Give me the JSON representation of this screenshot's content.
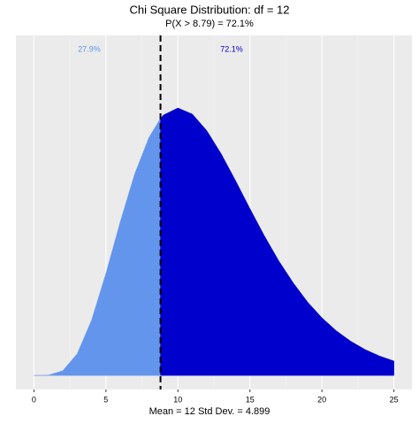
{
  "chart_data": {
    "type": "area",
    "title": "Chi Square Distribution: df = 12",
    "subtitle": "P(X > 8.79) = 72.1%",
    "xlabel": "Mean = 12  Std Dev. = 4.899",
    "cutoff": 8.79,
    "annotations": [
      "27.9%",
      "72.1%"
    ],
    "colors": [
      "#6495ed",
      "#0000cd"
    ],
    "x": [
      0,
      1,
      2,
      3,
      4,
      5,
      6,
      7,
      8,
      8.79,
      9,
      10,
      11,
      12,
      13,
      14,
      15,
      16,
      17,
      18,
      19,
      20,
      21,
      22,
      23,
      24,
      25
    ],
    "values": [
      0,
      7.9e-05,
      0.00153,
      0.00706,
      0.01804,
      0.0334,
      0.0504,
      0.0661,
      0.0781,
      0.0843,
      0.0854,
      0.0877,
      0.0857,
      0.0803,
      0.0727,
      0.0639,
      0.0547,
      0.0458,
      0.0376,
      0.0304,
      0.0241,
      0.0189,
      0.01464,
      0.01121,
      0.00849,
      0.00637,
      0.00474
    ],
    "xlim": [
      -1.25,
      26.25
    ],
    "ylim": [
      -0.0046,
      0.1115
    ],
    "xticks": [
      0,
      5,
      10,
      15,
      20,
      25
    ],
    "grid": true
  }
}
